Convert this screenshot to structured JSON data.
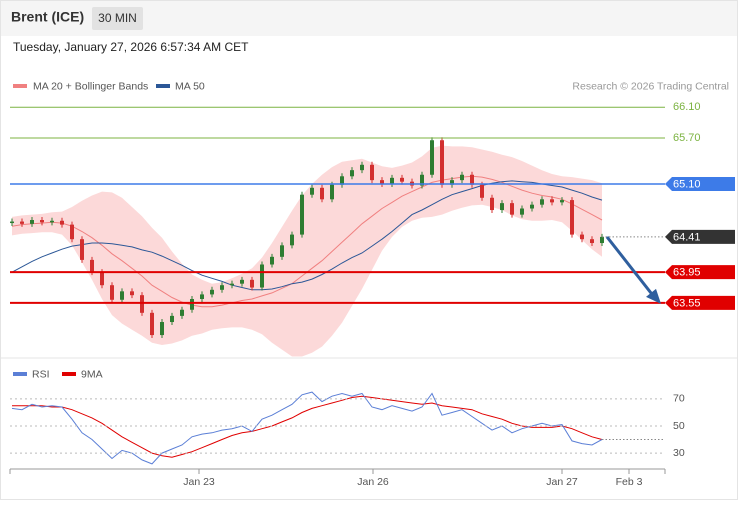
{
  "header": {
    "title": "Brent (ICE)",
    "interval": "30 MIN",
    "timestamp": "Tuesday, January 27, 2026 6:57:34 AM CET"
  },
  "chart_data": [
    {
      "type": "candlestick",
      "copyright": "Research © 2026 Trading Central",
      "up_color": "#2e7d32",
      "down_color": "#d32f2f",
      "xlim": [
        -0.2,
        65.3
      ],
      "ylim": [
        62.87,
        66.26
      ],
      "close": [
        64.61,
        64.58,
        64.63,
        64.6,
        64.62,
        64.57,
        64.38,
        64.11,
        63.95,
        63.78,
        63.59,
        63.7,
        63.65,
        63.42,
        63.13,
        63.3,
        63.38,
        63.46,
        63.6,
        63.66,
        63.72,
        63.78,
        63.8,
        63.85,
        63.75,
        64.05,
        64.15,
        64.3,
        64.44,
        64.96,
        65.05,
        64.9,
        65.09,
        65.2,
        65.28,
        65.35,
        65.15,
        65.1,
        65.18,
        65.13,
        65.08,
        65.22,
        65.67,
        65.09,
        65.15,
        65.22,
        65.09,
        64.92,
        64.76,
        64.85,
        64.7,
        64.78,
        64.83,
        64.9,
        64.86,
        64.89,
        64.44,
        64.38,
        64.33,
        64.41
      ],
      "series": [
        {
          "name": "MA 20 + Bollinger Bands",
          "color": "#f08080",
          "values": [
            64.55,
            64.57,
            64.58,
            64.59,
            64.6,
            64.59,
            64.55,
            64.48,
            64.4,
            64.3,
            64.19,
            64.1,
            64.0,
            63.9,
            63.78,
            63.7,
            63.62,
            63.56,
            63.52,
            63.5,
            63.5,
            63.52,
            63.55,
            63.58,
            63.6,
            63.64,
            63.68,
            63.74,
            63.8,
            63.9,
            64.0,
            64.1,
            64.22,
            64.34,
            64.46,
            64.58,
            64.68,
            64.78,
            64.86,
            64.94,
            65.0,
            65.06,
            65.12,
            65.15,
            65.17,
            65.19,
            65.2,
            65.19,
            65.16,
            65.12,
            65.07,
            65.02,
            64.98,
            64.95,
            64.93,
            64.9,
            64.84,
            64.77,
            64.7,
            64.63
          ],
          "upper": [
            64.67,
            64.69,
            64.7,
            64.71,
            64.73,
            64.74,
            64.8,
            64.88,
            64.95,
            65.0,
            64.99,
            64.92,
            64.8,
            64.68,
            64.53,
            64.4,
            64.22,
            64.06,
            63.92,
            63.85,
            63.8,
            63.82,
            63.87,
            63.93,
            64.0,
            64.14,
            64.33,
            64.54,
            64.75,
            64.95,
            65.1,
            65.22,
            65.32,
            65.39,
            65.41,
            65.43,
            65.38,
            65.33,
            65.31,
            65.34,
            65.38,
            65.46,
            65.57,
            65.6,
            65.59,
            65.59,
            65.58,
            65.55,
            65.52,
            65.48,
            65.45,
            65.4,
            65.34,
            65.28,
            65.23,
            65.2,
            65.19,
            65.17,
            65.15,
            65.11
          ],
          "lower": [
            64.43,
            64.45,
            64.46,
            64.47,
            64.47,
            64.44,
            64.3,
            64.08,
            63.85,
            63.6,
            63.39,
            63.28,
            63.2,
            63.12,
            63.03,
            63.0,
            63.02,
            63.06,
            63.12,
            63.15,
            63.2,
            63.22,
            63.23,
            63.23,
            63.2,
            63.14,
            63.03,
            62.94,
            62.85,
            62.85,
            62.9,
            62.98,
            63.12,
            63.29,
            63.51,
            63.73,
            63.98,
            64.23,
            64.41,
            64.54,
            64.62,
            64.66,
            64.67,
            64.7,
            64.75,
            64.79,
            64.82,
            64.83,
            64.8,
            64.76,
            64.69,
            64.64,
            64.62,
            64.62,
            64.63,
            64.6,
            64.49,
            64.37,
            64.25,
            64.15
          ]
        },
        {
          "name": "MA 50",
          "color": "#2b5797",
          "values": [
            63.95,
            64.02,
            64.09,
            64.15,
            64.2,
            64.25,
            64.29,
            64.31,
            64.33,
            64.33,
            64.32,
            64.3,
            64.28,
            64.24,
            64.21,
            64.16,
            64.1,
            64.04,
            63.97,
            63.91,
            63.87,
            63.83,
            63.78,
            63.75,
            63.72,
            63.72,
            63.73,
            63.76,
            63.8,
            63.82,
            63.86,
            63.92,
            63.99,
            64.07,
            64.14,
            64.2,
            64.29,
            64.38,
            64.48,
            64.59,
            64.7,
            64.76,
            64.83,
            64.9,
            64.96,
            65.0,
            65.04,
            65.08,
            65.11,
            65.13,
            65.14,
            65.13,
            65.12,
            65.1,
            65.08,
            65.06,
            65.02,
            64.98,
            64.93,
            64.89
          ]
        }
      ],
      "levels": [
        {
          "value": 66.1,
          "label": "66.10",
          "color": "#7cb342",
          "tag": false,
          "style": "solid"
        },
        {
          "value": 65.7,
          "label": "65.70",
          "color": "#7cb342",
          "tag": false,
          "style": "solid"
        },
        {
          "value": 65.1,
          "label": "65.10",
          "color": "#3d7be8",
          "tag": true,
          "style": "solid"
        },
        {
          "value": 64.41,
          "label": "64.41",
          "color": "#333333",
          "tag": true,
          "style": "dotted"
        },
        {
          "value": 63.95,
          "label": "63.95",
          "color": "#e00000",
          "tag": true,
          "style": "solid"
        },
        {
          "value": 63.55,
          "label": "63.55",
          "color": "#e00000",
          "tag": true,
          "style": "solid"
        }
      ]
    },
    {
      "type": "line",
      "xlim": [
        -0.2,
        65.3
      ],
      "ylim": [
        19,
        81
      ],
      "yticks": [
        30,
        50,
        70
      ],
      "grid": true,
      "xticks": [
        {
          "value": 18.7,
          "label": "Jan 23"
        },
        {
          "value": 36.1,
          "label": "Jan 26"
        },
        {
          "value": 55,
          "label": "Jan 27"
        },
        {
          "value": 61.7,
          "label": "Feb 3"
        }
      ],
      "series": [
        {
          "name": "RSI",
          "color": "#5b7fd6",
          "values": [
            63,
            62,
            66,
            64,
            65,
            64,
            55,
            45,
            40,
            33,
            26,
            32,
            30,
            25,
            22,
            30,
            33,
            36,
            42,
            44,
            45,
            47,
            48,
            50,
            46,
            55,
            58,
            62,
            66,
            73,
            75,
            68,
            72,
            74,
            72,
            74,
            64,
            62,
            65,
            63,
            61,
            64,
            74,
            58,
            60,
            62,
            57,
            52,
            47,
            50,
            45,
            48,
            50,
            52,
            50,
            51,
            39,
            37,
            36,
            40
          ]
        },
        {
          "name": "9MA",
          "color": "#e00000",
          "values": [
            65,
            65,
            65,
            65,
            64,
            64,
            62,
            59,
            56,
            52,
            47,
            42,
            38,
            34,
            30,
            28,
            27,
            29,
            31,
            34,
            37,
            40,
            43,
            45,
            46,
            48,
            50,
            53,
            56,
            60,
            63,
            65,
            67,
            69,
            71,
            72,
            71,
            70,
            69,
            68,
            67,
            66,
            67,
            65,
            64,
            63,
            62,
            59,
            57,
            55,
            52,
            50,
            49,
            49,
            49,
            50,
            48,
            45,
            42,
            40
          ]
        }
      ]
    }
  ]
}
